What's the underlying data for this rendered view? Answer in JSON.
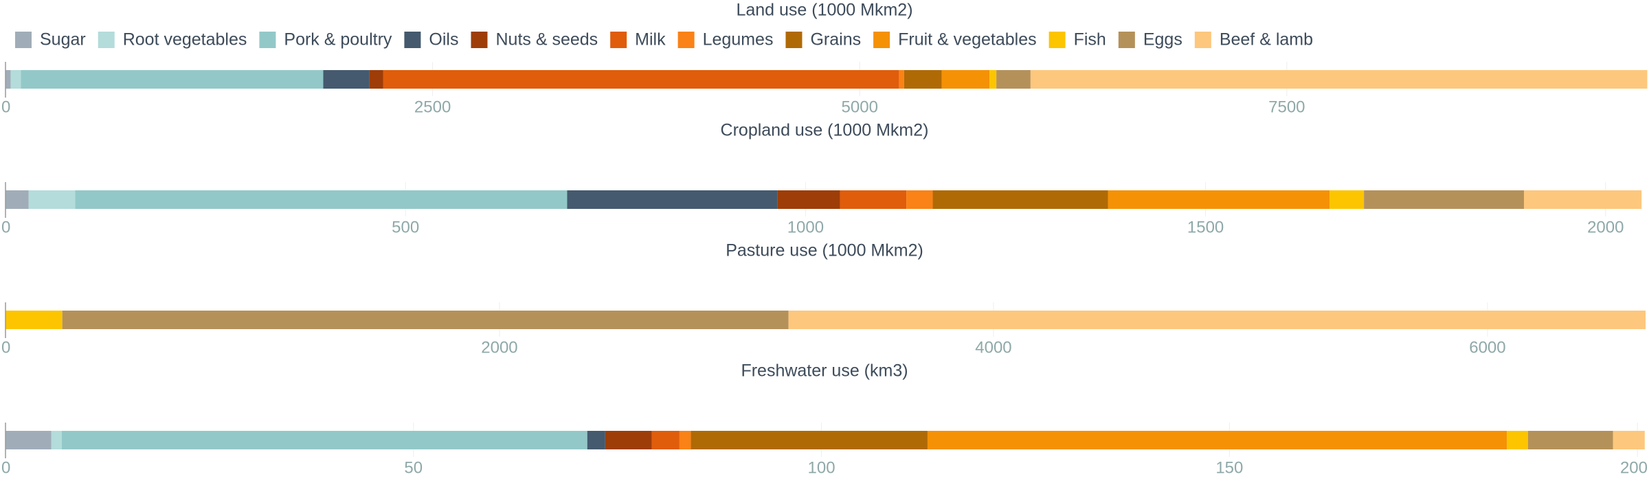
{
  "chart_data": [
    {
      "type": "bar",
      "orientation": "horizontal-stacked",
      "title": "Land use (1000 Mkm2)",
      "xlim": [
        0,
        9600
      ],
      "xticks": [
        0,
        2500,
        5000,
        7500
      ],
      "series": [
        {
          "name": "Sugar",
          "value": 30
        },
        {
          "name": "Root vegetables",
          "value": 60
        },
        {
          "name": "Pork & poultry",
          "value": 1770
        },
        {
          "name": "Oils",
          "value": 270
        },
        {
          "name": "Nuts & seeds",
          "value": 80
        },
        {
          "name": "Milk",
          "value": 3020
        },
        {
          "name": "Legumes",
          "value": 30
        },
        {
          "name": "Grains",
          "value": 220
        },
        {
          "name": "Fruit & vegetables",
          "value": 280
        },
        {
          "name": "Fish",
          "value": 40
        },
        {
          "name": "Eggs",
          "value": 200
        },
        {
          "name": "Beef & lamb",
          "value": 3610
        }
      ]
    },
    {
      "type": "bar",
      "orientation": "horizontal-stacked",
      "title": "Cropland use (1000 Mkm2)",
      "xlim": [
        0,
        2050
      ],
      "xticks": [
        0,
        500,
        1000,
        1500,
        2000
      ],
      "series": [
        {
          "name": "Sugar",
          "value": 29
        },
        {
          "name": "Root vegetables",
          "value": 58
        },
        {
          "name": "Pork & poultry",
          "value": 615
        },
        {
          "name": "Oils",
          "value": 263
        },
        {
          "name": "Nuts & seeds",
          "value": 78
        },
        {
          "name": "Milk",
          "value": 83
        },
        {
          "name": "Legumes",
          "value": 33
        },
        {
          "name": "Grains",
          "value": 219
        },
        {
          "name": "Fruit & vegetables",
          "value": 277
        },
        {
          "name": "Fish",
          "value": 43
        },
        {
          "name": "Eggs",
          "value": 200
        },
        {
          "name": "Beef & lamb",
          "value": 147
        }
      ]
    },
    {
      "type": "bar",
      "orientation": "horizontal-stacked",
      "title": "Pasture use (1000 Mkm2)",
      "xlim": [
        0,
        6640
      ],
      "xticks": [
        0,
        2000,
        4000,
        6000
      ],
      "series": [
        {
          "name": "Sugar",
          "value": 0
        },
        {
          "name": "Root vegetables",
          "value": 0
        },
        {
          "name": "Pork & poultry",
          "value": 0
        },
        {
          "name": "Oils",
          "value": 0
        },
        {
          "name": "Nuts & seeds",
          "value": 0
        },
        {
          "name": "Milk",
          "value": 0
        },
        {
          "name": "Legumes",
          "value": 0
        },
        {
          "name": "Grains",
          "value": 0
        },
        {
          "name": "Fruit & vegetables",
          "value": 0
        },
        {
          "name": "Fish",
          "value": 230
        },
        {
          "name": "Eggs",
          "value": 2940
        },
        {
          "name": "Beef & lamb",
          "value": 3470
        }
      ]
    },
    {
      "type": "bar",
      "orientation": "horizontal-stacked",
      "title": "Freshwater use (km3)",
      "xlim": [
        0,
        201
      ],
      "xticks": [
        0,
        50,
        100,
        150,
        200
      ],
      "series": [
        {
          "name": "Sugar",
          "value": 5.6
        },
        {
          "name": "Root vegetables",
          "value": 1.3
        },
        {
          "name": "Pork & poultry",
          "value": 64.4
        },
        {
          "name": "Oils",
          "value": 2.2
        },
        {
          "name": "Nuts & seeds",
          "value": 5.7
        },
        {
          "name": "Milk",
          "value": 3.4
        },
        {
          "name": "Legumes",
          "value": 1.4
        },
        {
          "name": "Grains",
          "value": 29.0
        },
        {
          "name": "Fruit & vegetables",
          "value": 71.0
        },
        {
          "name": "Fish",
          "value": 2.6
        },
        {
          "name": "Eggs",
          "value": 10.4
        },
        {
          "name": "Beef & lamb",
          "value": 3.9
        }
      ]
    }
  ],
  "legend": {
    "placement": "top-left",
    "items": [
      {
        "name": "Sugar",
        "color": "#a0adb8"
      },
      {
        "name": "Root vegetables",
        "color": "#b3dcdb"
      },
      {
        "name": "Pork & poultry",
        "color": "#93c8c8"
      },
      {
        "name": "Oils",
        "color": "#455a6e"
      },
      {
        "name": "Nuts & seeds",
        "color": "#9e3d08"
      },
      {
        "name": "Milk",
        "color": "#e05d0b"
      },
      {
        "name": "Legumes",
        "color": "#fa8216"
      },
      {
        "name": "Grains",
        "color": "#b06a05"
      },
      {
        "name": "Fruit & vegetables",
        "color": "#f59105"
      },
      {
        "name": "Fish",
        "color": "#fcc500"
      },
      {
        "name": "Eggs",
        "color": "#b5915a"
      },
      {
        "name": "Beef & lamb",
        "color": "#fdc77d"
      }
    ]
  }
}
